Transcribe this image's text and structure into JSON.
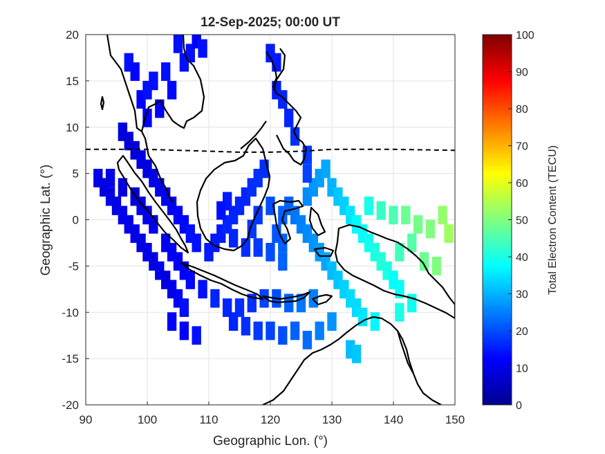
{
  "chart_data": {
    "type": "heatmap",
    "title": "12-Sep-2025; 00:00 UT",
    "xlabel": "Geographic Lon. (°)",
    "ylabel": "Geographic Lat. (°)",
    "xlim": [
      90,
      150
    ],
    "ylim": [
      -20,
      20
    ],
    "xticks": [
      "90",
      "100",
      "110",
      "120",
      "130",
      "140",
      "150"
    ],
    "yticks": [
      "-20",
      "-15",
      "-10",
      "-5",
      "0",
      "5",
      "10",
      "15",
      "20"
    ],
    "grid": true,
    "colorbar": {
      "label": "Total Electron Content (TECU)",
      "min": 0,
      "max": 100,
      "ticks": [
        "0",
        "10",
        "20",
        "30",
        "40",
        "50",
        "60",
        "70",
        "80",
        "90",
        "100"
      ],
      "colormap": "jet"
    },
    "magnetic_equator": [
      [
        90,
        7.6
      ],
      [
        100,
        7.6
      ],
      [
        110,
        7.4
      ],
      [
        115,
        7.3
      ],
      [
        120,
        7.3
      ],
      [
        125,
        7.4
      ],
      [
        130,
        7.6
      ],
      [
        140,
        7.6
      ],
      [
        150,
        7.5
      ]
    ],
    "tec_cells": [
      [
        92,
        4.5,
        10
      ],
      [
        93,
        3.5,
        9
      ],
      [
        94,
        2.5,
        10
      ],
      [
        95,
        1.5,
        9
      ],
      [
        96,
        0.5,
        10
      ],
      [
        97,
        -0.5,
        10
      ],
      [
        98,
        -1.5,
        10
      ],
      [
        99,
        -2.5,
        9
      ],
      [
        100,
        -3.5,
        10
      ],
      [
        101,
        -4.5,
        9
      ],
      [
        102,
        -5.5,
        10
      ],
      [
        103,
        -6.5,
        9
      ],
      [
        104,
        -7.5,
        10
      ],
      [
        105,
        -8.5,
        12
      ],
      [
        106,
        -9.5,
        14
      ],
      [
        94,
        4.5,
        10
      ],
      [
        96,
        3.5,
        9
      ],
      [
        98,
        2.5,
        8
      ],
      [
        99,
        1.5,
        9
      ],
      [
        100,
        0.5,
        10
      ],
      [
        101,
        -0.5,
        10
      ],
      [
        103,
        -2.5,
        11
      ],
      [
        104,
        -3.5,
        11
      ],
      [
        105,
        -4.5,
        12
      ],
      [
        106,
        -5.5,
        12
      ],
      [
        107,
        -6.5,
        13
      ],
      [
        109,
        -7.5,
        14
      ],
      [
        111,
        -8.5,
        16
      ],
      [
        113,
        -9.5,
        16
      ],
      [
        115,
        -9.5,
        17
      ],
      [
        117,
        -9,
        17
      ],
      [
        119,
        -8.5,
        19
      ],
      [
        121,
        -8.5,
        20
      ],
      [
        123,
        -9,
        22
      ],
      [
        125,
        -9,
        24
      ],
      [
        127,
        -8.5,
        25
      ],
      [
        96,
        9.5,
        9
      ],
      [
        97,
        8.5,
        8
      ],
      [
        98,
        7.5,
        8
      ],
      [
        99,
        6.5,
        9
      ],
      [
        100,
        5.5,
        9
      ],
      [
        101,
        4.5,
        10
      ],
      [
        102,
        3.5,
        10
      ],
      [
        103,
        2.5,
        11
      ],
      [
        104,
        1.5,
        11
      ],
      [
        105,
        0.5,
        12
      ],
      [
        106,
        -0.5,
        13
      ],
      [
        107,
        -1.5,
        14
      ],
      [
        108,
        -2.5,
        14
      ],
      [
        110,
        -3.5,
        15
      ],
      [
        111,
        -2.5,
        15
      ],
      [
        112,
        -1.5,
        15
      ],
      [
        113,
        -0.5,
        16
      ],
      [
        114,
        0.5,
        16
      ],
      [
        115,
        1.5,
        16
      ],
      [
        116,
        2.5,
        16
      ],
      [
        117,
        3.5,
        17
      ],
      [
        118,
        4.5,
        17
      ],
      [
        119,
        5.5,
        17
      ],
      [
        113,
        2,
        15
      ],
      [
        112,
        1,
        14
      ],
      [
        114,
        -2,
        16
      ],
      [
        116,
        -3,
        17
      ],
      [
        118,
        -3,
        18
      ],
      [
        120,
        -3.5,
        20
      ],
      [
        122,
        -4.5,
        22
      ],
      [
        122,
        -2.5,
        22
      ],
      [
        121,
        -1.5,
        21
      ],
      [
        122,
        0.5,
        22
      ],
      [
        123,
        1.5,
        22
      ],
      [
        120,
        1.5,
        20
      ],
      [
        118,
        0.5,
        18
      ],
      [
        117,
        -1,
        18
      ],
      [
        124,
        0.5,
        24
      ],
      [
        125,
        -0.5,
        25
      ],
      [
        126,
        -1.5,
        26
      ],
      [
        127,
        -2.5,
        27
      ],
      [
        128,
        -3.5,
        28
      ],
      [
        129,
        -4.5,
        29
      ],
      [
        130,
        -5.5,
        31
      ],
      [
        131,
        -6.5,
        32
      ],
      [
        132,
        -7.5,
        33
      ],
      [
        133,
        -8.5,
        34
      ],
      [
        134,
        -9.5,
        34
      ],
      [
        126,
        2.5,
        26
      ],
      [
        127,
        3.5,
        27
      ],
      [
        128,
        4.5,
        28
      ],
      [
        129,
        5.5,
        29
      ],
      [
        130,
        3.5,
        30
      ],
      [
        131,
        2.5,
        32
      ],
      [
        132,
        1.5,
        33
      ],
      [
        133,
        0.5,
        35
      ],
      [
        134,
        -0.5,
        37
      ],
      [
        135,
        -1.5,
        38
      ],
      [
        136,
        -2.5,
        39
      ],
      [
        137,
        -3.5,
        40
      ],
      [
        138,
        -4.5,
        41
      ],
      [
        139,
        -5.5,
        40
      ],
      [
        140,
        -6.5,
        38
      ],
      [
        141,
        -7.5,
        38
      ],
      [
        136,
        1.5,
        40
      ],
      [
        138,
        1.0,
        43
      ],
      [
        140,
        0.5,
        45
      ],
      [
        142,
        0.5,
        48
      ],
      [
        144,
        -0.5,
        49
      ],
      [
        146,
        -1.0,
        50
      ],
      [
        148,
        0.5,
        52
      ],
      [
        149,
        -1.5,
        53
      ],
      [
        147,
        -5,
        50
      ],
      [
        141,
        -3.5,
        44
      ],
      [
        143,
        -2.5,
        46
      ],
      [
        145,
        -4.5,
        48
      ],
      [
        99,
        13,
        12
      ],
      [
        100,
        14,
        14
      ],
      [
        101,
        15,
        14
      ],
      [
        103,
        16,
        14
      ],
      [
        104,
        14,
        13
      ],
      [
        106,
        17,
        14
      ],
      [
        107,
        18,
        14
      ],
      [
        105,
        19,
        14
      ],
      [
        102,
        12,
        12
      ],
      [
        100,
        11,
        13
      ],
      [
        120,
        18,
        15
      ],
      [
        121,
        17,
        15
      ],
      [
        121,
        14,
        15
      ],
      [
        122,
        13,
        16
      ],
      [
        123,
        11,
        16
      ],
      [
        124,
        9,
        17
      ],
      [
        126,
        7,
        18
      ],
      [
        126,
        5,
        19
      ],
      [
        108,
        19.5,
        12
      ],
      [
        109,
        18.5,
        14
      ],
      [
        97,
        17,
        14
      ],
      [
        98,
        16,
        13
      ],
      [
        104,
        -11,
        12
      ],
      [
        106,
        -12,
        12
      ],
      [
        108,
        -12.5,
        14
      ],
      [
        114,
        -11,
        16
      ],
      [
        116,
        -11.5,
        17
      ],
      [
        118,
        -12,
        18
      ],
      [
        120,
        -12,
        19
      ],
      [
        122,
        -12.5,
        20
      ],
      [
        124,
        -12,
        22
      ],
      [
        126,
        -13,
        23
      ],
      [
        128,
        -12,
        25
      ],
      [
        130,
        -11,
        27
      ],
      [
        133,
        -14,
        31
      ],
      [
        134,
        -14.5,
        32
      ],
      [
        135,
        -10.5,
        35
      ],
      [
        137,
        -11,
        37
      ],
      [
        141,
        -10,
        40
      ],
      [
        143,
        -9,
        39
      ]
    ]
  }
}
